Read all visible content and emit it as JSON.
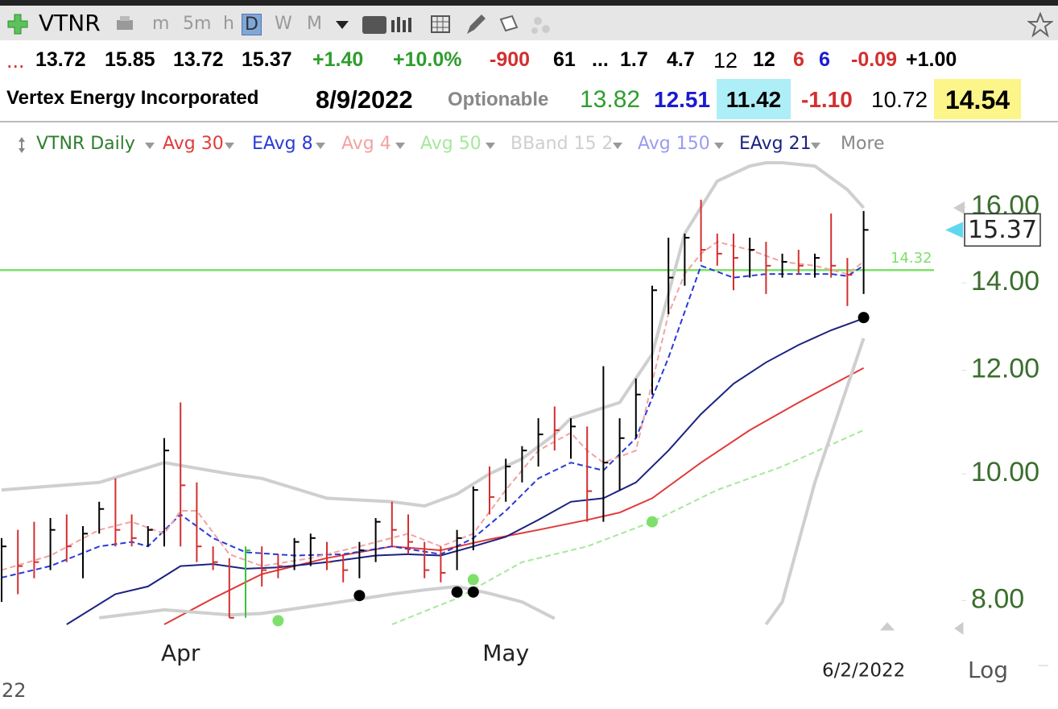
{
  "toolbar": {
    "symbol": "VTNR",
    "timeframes": [
      "m",
      "5m",
      "h",
      "D",
      "W",
      "M"
    ],
    "active_timeframe": 3
  },
  "quote_row": [
    {
      "text": "...",
      "color": "#d32f2f",
      "bold": false
    },
    {
      "text": "13.72",
      "color": "#000000",
      "bold": true
    },
    {
      "text": "15.85",
      "color": "#000000",
      "bold": true
    },
    {
      "text": "13.72",
      "color": "#000000",
      "bold": true
    },
    {
      "text": "15.37",
      "color": "#000000",
      "bold": true
    },
    {
      "text": "+1.40",
      "color": "#2e9d2e",
      "bold": true
    },
    {
      "text": "+10.0%",
      "color": "#2e9d2e",
      "bold": true
    },
    {
      "text": "-900",
      "color": "#d32f2f",
      "bold": true
    },
    {
      "text": "61",
      "color": "#000000",
      "bold": true
    },
    {
      "text": "...",
      "color": "#000000",
      "bold": true
    },
    {
      "text": "1.7",
      "color": "#000000",
      "bold": true
    },
    {
      "text": "4.7",
      "color": "#000000",
      "bold": true
    },
    {
      "text": "12",
      "color": "#000000",
      "bold": false
    },
    {
      "text": "12",
      "color": "#000000",
      "bold": true
    },
    {
      "text": "6",
      "color": "#d32f2f",
      "bold": true
    },
    {
      "text": "6",
      "color": "#1a1ad0",
      "bold": true
    },
    {
      "text": "-0.09",
      "color": "#d32f2f",
      "bold": true
    },
    {
      "text": "+1.00",
      "color": "#000000",
      "bold": true
    }
  ],
  "info_row": [
    {
      "text": "Vertex Energy Incorporated",
      "color": "#000000",
      "bold": true,
      "background": null
    },
    {
      "text": "8/9/2022",
      "color": "#000000",
      "bold": true,
      "background": null
    },
    {
      "text": "Optionable",
      "color": "#888888",
      "bold": true,
      "background": null
    },
    {
      "text": "13.82",
      "color": "#2e9d2e",
      "bold": false,
      "background": null
    },
    {
      "text": "12.51",
      "color": "#1a1ad0",
      "bold": true,
      "background": null
    },
    {
      "text": "11.42",
      "color": "#000000",
      "bold": true,
      "background": "#aeeef6"
    },
    {
      "text": "-1.10",
      "color": "#d32f2f",
      "bold": true,
      "background": null
    },
    {
      "text": "10.72",
      "color": "#000000",
      "bold": false,
      "background": null
    },
    {
      "text": "14.54",
      "color": "#000000",
      "bold": true,
      "background": "#fbf58a"
    }
  ],
  "chart_data": {
    "type": "ohlc",
    "log_scale": true,
    "ylim": [
      7.67,
      17.35
    ],
    "yticks": [
      {
        "value": 8,
        "label": "8.00"
      },
      {
        "value": 10,
        "label": "10.00"
      },
      {
        "value": 12,
        "label": "12.00"
      },
      {
        "value": 14,
        "label": "14.00"
      },
      {
        "value": 16,
        "label": "16.00"
      }
    ],
    "categories": [
      null,
      null,
      null,
      null,
      null,
      null,
      null,
      null,
      null,
      null,
      null,
      "Apr",
      null,
      null,
      null,
      null,
      null,
      null,
      null,
      null,
      null,
      null,
      null,
      null,
      null,
      null,
      null,
      null,
      null,
      null,
      null,
      "May",
      null,
      null,
      null,
      null,
      null,
      null,
      null,
      null,
      null,
      null,
      null,
      null,
      null,
      null,
      null,
      null,
      null,
      null,
      null,
      null,
      null,
      null
    ],
    "bars": {
      "name": "VTNR Daily",
      "high": [
        8.93,
        9.06,
        9.19,
        9.25,
        9.31,
        9.12,
        9.52,
        9.92,
        9.31,
        9.12,
        10.65,
        11.34,
        9.85,
        8.8,
        8.62,
        8.8,
        8.8,
        8.68,
        8.93,
        9.0,
        8.87,
        8.68,
        8.87,
        9.25,
        9.52,
        9.31,
        8.87,
        8.8,
        9.06,
        9.78,
        10.13,
        10.27,
        10.5,
        11.03,
        11.26,
        11.03,
        10.87,
        12.09,
        11.03,
        11.83,
        13.93,
        15.16,
        15.27,
        16.21,
        15.27,
        15.27,
        15.16,
        15.05,
        14.74,
        14.84,
        14.74,
        15.82,
        14.63,
        15.89
      ],
      "low": [
        7.98,
        8.09,
        8.32,
        8.44,
        8.56,
        8.32,
        9.0,
        8.8,
        8.8,
        8.8,
        8.8,
        8.8,
        8.56,
        8.44,
        7.76,
        7.76,
        8.2,
        8.32,
        8.44,
        8.5,
        8.44,
        8.26,
        8.32,
        8.56,
        8.8,
        8.68,
        8.32,
        8.26,
        8.44,
        8.74,
        9.31,
        9.52,
        9.85,
        10.13,
        10.42,
        10.27,
        9.19,
        9.19,
        9.72,
        10.65,
        11.5,
        13.25,
        13.93,
        14.53,
        14.43,
        13.82,
        14.13,
        13.73,
        14.13,
        14.22,
        14.13,
        14.13,
        13.44,
        13.73
      ],
      "close": [
        8.8,
        8.5,
        8.56,
        9.06,
        8.8,
        9.0,
        9.4,
        9.06,
        8.93,
        9.06,
        10.42,
        9.8,
        8.8,
        8.56,
        7.76,
        8.74,
        8.44,
        8.5,
        8.87,
        8.93,
        8.56,
        8.44,
        8.74,
        9.19,
        9.06,
        8.87,
        8.44,
        8.4,
        8.93,
        9.72,
        9.6,
        10.13,
        10.42,
        10.72,
        10.8,
        10.87,
        9.7,
        10.2,
        10.65,
        11.5,
        13.82,
        14.13,
        15.16,
        14.84,
        14.74,
        14.63,
        14.84,
        14.43,
        14.53,
        14.43,
        14.63,
        14.43,
        14.2,
        15.37
      ],
      "colors": [
        "#000",
        "#d32f2f",
        "#d32f2f",
        "#000",
        "#d32f2f",
        "#000",
        "#000",
        "#d32f2f",
        "#d32f2f",
        "#000",
        "#000",
        "#d32f2f",
        "#d32f2f",
        "#d32f2f",
        "#d32f2f",
        "#3cc43c",
        "#d32f2f",
        "#d32f2f",
        "#000",
        "#000",
        "#d32f2f",
        "#d32f2f",
        "#000",
        "#000",
        "#d32f2f",
        "#d32f2f",
        "#d32f2f",
        "#d32f2f",
        "#000",
        "#000",
        "#d32f2f",
        "#000",
        "#000",
        "#000",
        "#d32f2f",
        "#000",
        "#d32f2f",
        "#000",
        "#000",
        "#000",
        "#000",
        "#000",
        "#000",
        "#d32f2f",
        "#d32f2f",
        "#d32f2f",
        "#000",
        "#d32f2f",
        "#000",
        "#d32f2f",
        "#000",
        "#d32f2f",
        "#d32f2f",
        "#000"
      ],
      "color": "#2e7d2e"
    },
    "indicators": [
      {
        "name": "Avg 30",
        "color": "#e03b3b",
        "dash": false,
        "x": [
          10,
          13,
          16,
          20,
          24,
          27,
          30,
          33,
          36,
          38,
          40,
          43,
          46,
          49,
          53
        ],
        "values": [
          7.67,
          8.03,
          8.38,
          8.62,
          8.8,
          8.74,
          8.91,
          9.06,
          9.22,
          9.34,
          9.58,
          10.2,
          10.8,
          11.34,
          12.05
        ]
      },
      {
        "name": "EAvg 8",
        "color": "#2a3bd6",
        "dash": true,
        "x": [
          0,
          3,
          6,
          8,
          9,
          11,
          13,
          15,
          18,
          21,
          24,
          27,
          29,
          31,
          33,
          35,
          37,
          39,
          41,
          43,
          45,
          47,
          49,
          51,
          52,
          53
        ],
        "values": [
          8.33,
          8.5,
          8.8,
          8.87,
          8.8,
          9.31,
          8.93,
          8.71,
          8.66,
          8.68,
          8.8,
          8.68,
          8.93,
          9.37,
          9.92,
          10.2,
          10.06,
          10.65,
          12.27,
          14.43,
          14.13,
          14.22,
          14.22,
          14.22,
          14.17,
          14.43
        ]
      },
      {
        "name": "Avg 4",
        "color": "#f2a3a3",
        "dash": true,
        "x": [
          0,
          3,
          6,
          8,
          10,
          11,
          12,
          14,
          16,
          19,
          22,
          25,
          27,
          29,
          31,
          33,
          35,
          36,
          37,
          39,
          41,
          42,
          43,
          44,
          46,
          48,
          50,
          52,
          53
        ],
        "values": [
          8.44,
          8.66,
          9.06,
          9.19,
          9.0,
          9.37,
          9.37,
          8.68,
          8.5,
          8.62,
          8.8,
          9.0,
          8.8,
          9.0,
          9.72,
          10.42,
          10.75,
          10.42,
          10.2,
          10.42,
          13.25,
          14.22,
          14.74,
          15.05,
          14.84,
          14.53,
          14.43,
          14.22,
          14.53
        ]
      },
      {
        "name": "Avg 50",
        "color": "#a6e89c",
        "dash": true,
        "x": [
          24,
          28,
          32,
          36,
          40,
          44,
          48,
          53
        ],
        "values": [
          7.67,
          8.03,
          8.56,
          8.8,
          9.19,
          9.72,
          10.13,
          10.8
        ]
      },
      {
        "name": "BBand 15 2",
        "color": "#cfcfcf",
        "dash": false,
        "x": [
          0,
          6,
          10,
          14,
          16,
          20,
          24,
          26,
          28,
          30,
          32,
          34,
          35,
          38,
          40,
          42,
          44,
          46,
          47,
          48,
          50,
          52,
          53
        ],
        "upper": [
          9.72,
          9.85,
          10.2,
          10.0,
          9.92,
          9.58,
          9.52,
          9.45,
          9.65,
          10.0,
          10.27,
          10.72,
          11.03,
          11.34,
          12.35,
          15.27,
          16.75,
          17.2,
          17.3,
          17.3,
          17.2,
          16.5,
          15.98
        ],
        "lower": [
          null,
          7.76,
          7.87,
          7.8,
          7.82,
          7.95,
          8.09,
          8.15,
          8.2,
          8.1,
          7.98,
          7.75,
          null,
          null,
          null,
          null,
          null,
          null,
          7.67,
          7.98,
          9.85,
          11.67,
          12.7
        ]
      },
      {
        "name": "Avg 150",
        "color": "#9a9cf0",
        "dash": false
      },
      {
        "name": "EAvg 21",
        "color": "#1b2380",
        "dash": false,
        "x": [
          4,
          7,
          9,
          11,
          13,
          15,
          17,
          20,
          23,
          25,
          27,
          29,
          31,
          33,
          35,
          37,
          39,
          41,
          43,
          45,
          47,
          49,
          51,
          53
        ],
        "values": [
          7.67,
          8.09,
          8.2,
          8.5,
          8.53,
          8.46,
          8.48,
          8.56,
          8.66,
          8.68,
          8.66,
          8.8,
          8.95,
          9.22,
          9.52,
          9.58,
          9.85,
          10.42,
          11.11,
          11.72,
          12.17,
          12.55,
          12.88,
          13.15
        ]
      }
    ],
    "more_label": "More",
    "markers": [
      {
        "color": "#000000",
        "x": [
          22,
          28,
          29,
          53
        ],
        "values": [
          8.07,
          8.12,
          8.12,
          13.17
        ]
      },
      {
        "color": "#7ee06a",
        "x": [
          17,
          29,
          40
        ],
        "values": [
          7.72,
          8.3,
          9.19
        ]
      }
    ],
    "hline": {
      "value": 14.32,
      "color": "#7ee06a"
    },
    "last_price": 15.37,
    "date_label": "6/2/2022",
    "scale_label": "Log",
    "corner_label": "22"
  }
}
